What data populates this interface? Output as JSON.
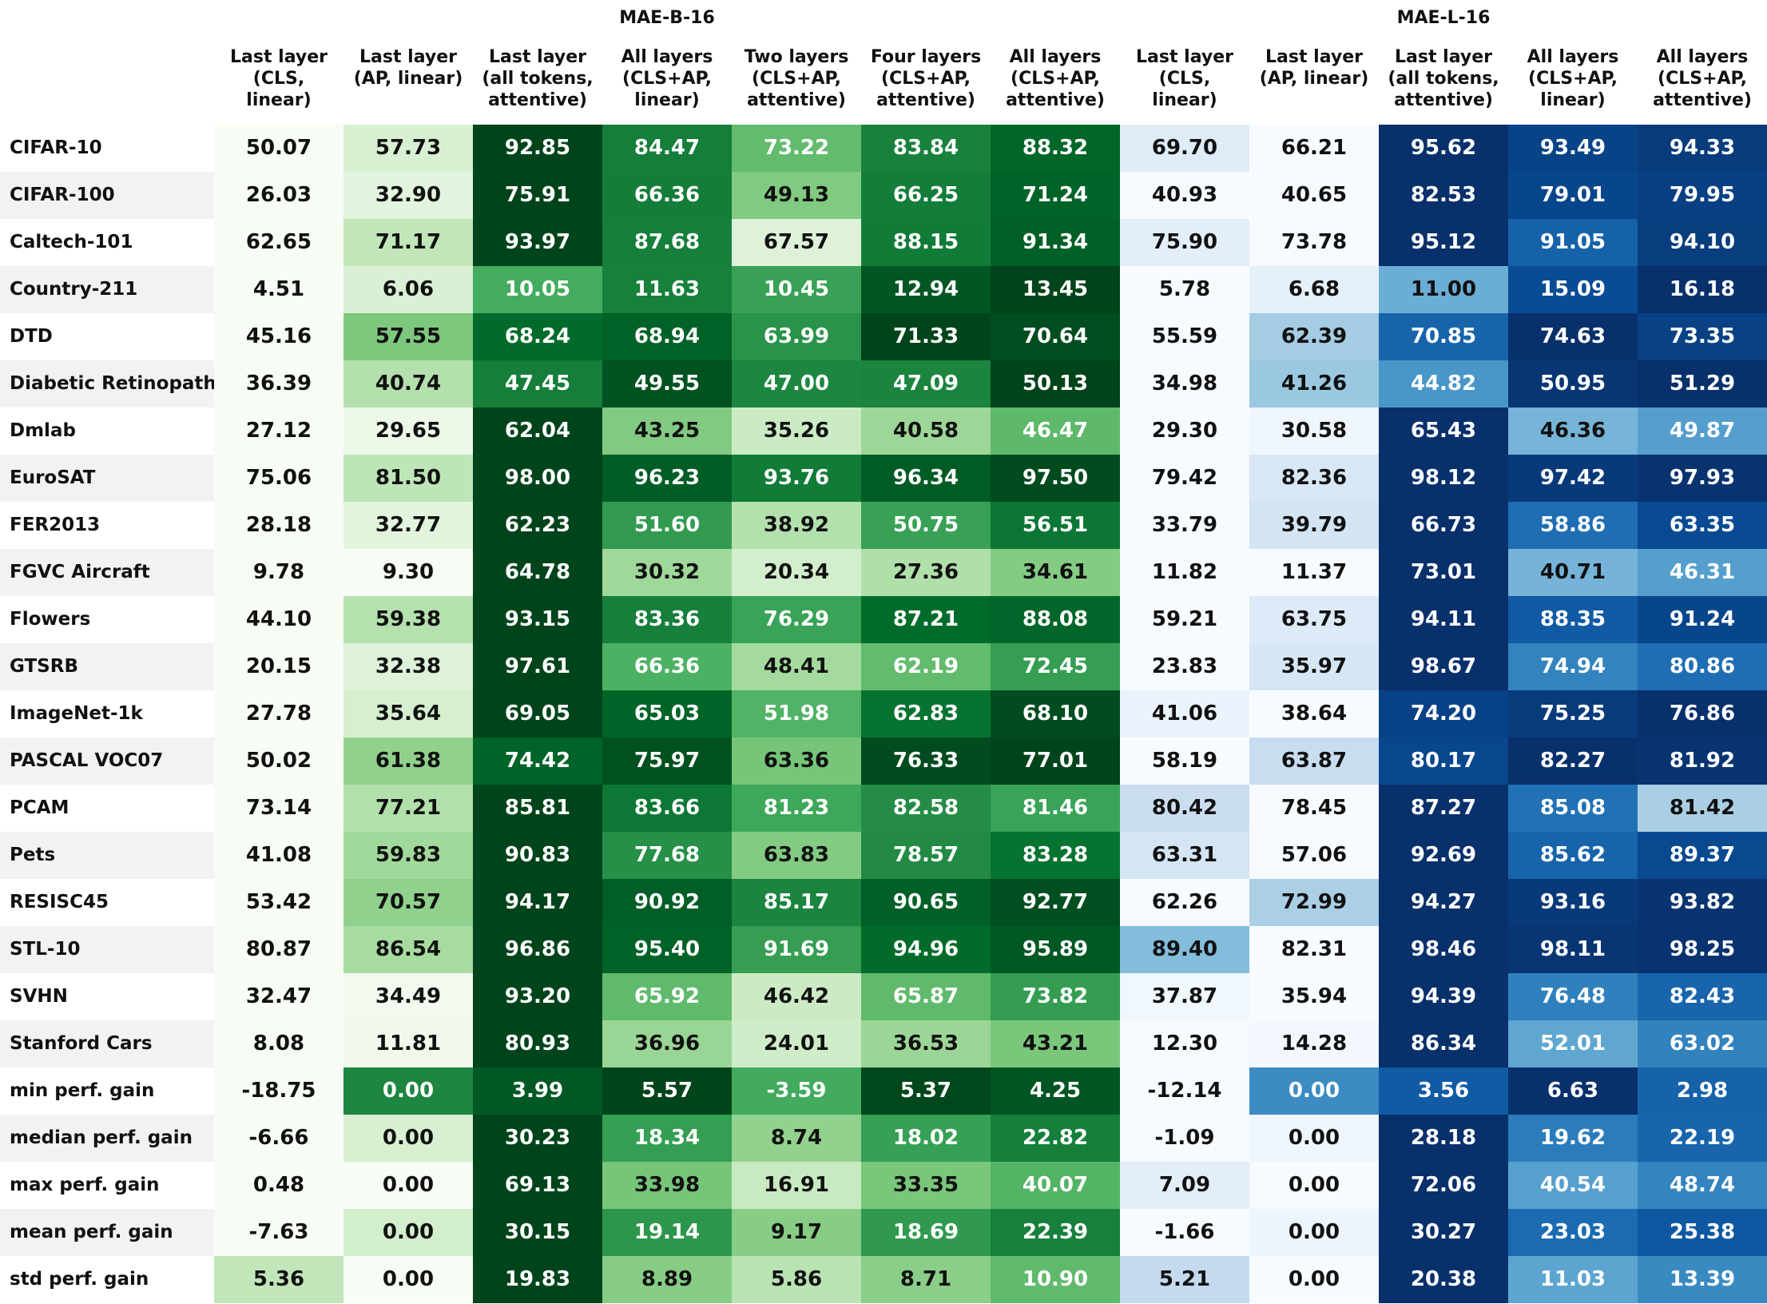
{
  "chart_data": {
    "type": "heatmap",
    "groups": [
      {
        "name": "MAE-B-16",
        "palette": "green",
        "columns": [
          0,
          1,
          2,
          3,
          4,
          5,
          6
        ]
      },
      {
        "name": "MAE-L-16",
        "palette": "blue",
        "columns": [
          7,
          8,
          9,
          10,
          11
        ]
      }
    ],
    "columns": [
      "Last layer\n(CLS,\nlinear)",
      "Last layer\n(AP, linear)",
      "Last layer\n(all tokens,\nattentive)",
      "All layers\n(CLS+AP,\nlinear)",
      "Two layers\n(CLS+AP,\nattentive)",
      "Four layers\n(CLS+AP,\nattentive)",
      "All layers\n(CLS+AP,\nattentive)",
      "Last layer\n(CLS,\nlinear)",
      "Last layer\n(AP, linear)",
      "Last layer\n(all tokens,\nattentive)",
      "All layers\n(CLS+AP,\nlinear)",
      "All layers\n(CLS+AP,\nattentive)"
    ],
    "rows": [
      {
        "label": "CIFAR-10",
        "values": [
          "50.07",
          "57.73",
          "92.85",
          "84.47",
          "73.22",
          "83.84",
          "88.32",
          "69.70",
          "66.21",
          "95.62",
          "93.49",
          "94.33"
        ]
      },
      {
        "label": "CIFAR-100",
        "values": [
          "26.03",
          "32.90",
          "75.91",
          "66.36",
          "49.13",
          "66.25",
          "71.24",
          "40.93",
          "40.65",
          "82.53",
          "79.01",
          "79.95"
        ]
      },
      {
        "label": "Caltech-101",
        "values": [
          "62.65",
          "71.17",
          "93.97",
          "87.68",
          "67.57",
          "88.15",
          "91.34",
          "75.90",
          "73.78",
          "95.12",
          "91.05",
          "94.10"
        ]
      },
      {
        "label": "Country-211",
        "values": [
          "4.51",
          "6.06",
          "10.05",
          "11.63",
          "10.45",
          "12.94",
          "13.45",
          "5.78",
          "6.68",
          "11.00",
          "15.09",
          "16.18"
        ]
      },
      {
        "label": "DTD",
        "values": [
          "45.16",
          "57.55",
          "68.24",
          "68.94",
          "63.99",
          "71.33",
          "70.64",
          "55.59",
          "62.39",
          "70.85",
          "74.63",
          "73.35"
        ]
      },
      {
        "label": "Diabetic Retinopathy",
        "values": [
          "36.39",
          "40.74",
          "47.45",
          "49.55",
          "47.00",
          "47.09",
          "50.13",
          "34.98",
          "41.26",
          "44.82",
          "50.95",
          "51.29"
        ]
      },
      {
        "label": "Dmlab",
        "values": [
          "27.12",
          "29.65",
          "62.04",
          "43.25",
          "35.26",
          "40.58",
          "46.47",
          "29.30",
          "30.58",
          "65.43",
          "46.36",
          "49.87"
        ]
      },
      {
        "label": "EuroSAT",
        "values": [
          "75.06",
          "81.50",
          "98.00",
          "96.23",
          "93.76",
          "96.34",
          "97.50",
          "79.42",
          "82.36",
          "98.12",
          "97.42",
          "97.93"
        ]
      },
      {
        "label": "FER2013",
        "values": [
          "28.18",
          "32.77",
          "62.23",
          "51.60",
          "38.92",
          "50.75",
          "56.51",
          "33.79",
          "39.79",
          "66.73",
          "58.86",
          "63.35"
        ]
      },
      {
        "label": "FGVC Aircraft",
        "values": [
          "9.78",
          "9.30",
          "64.78",
          "30.32",
          "20.34",
          "27.36",
          "34.61",
          "11.82",
          "11.37",
          "73.01",
          "40.71",
          "46.31"
        ]
      },
      {
        "label": "Flowers",
        "values": [
          "44.10",
          "59.38",
          "93.15",
          "83.36",
          "76.29",
          "87.21",
          "88.08",
          "59.21",
          "63.75",
          "94.11",
          "88.35",
          "91.24"
        ]
      },
      {
        "label": "GTSRB",
        "values": [
          "20.15",
          "32.38",
          "97.61",
          "66.36",
          "48.41",
          "62.19",
          "72.45",
          "23.83",
          "35.97",
          "98.67",
          "74.94",
          "80.86"
        ]
      },
      {
        "label": "ImageNet-1k",
        "values": [
          "27.78",
          "35.64",
          "69.05",
          "65.03",
          "51.98",
          "62.83",
          "68.10",
          "41.06",
          "38.64",
          "74.20",
          "75.25",
          "76.86"
        ]
      },
      {
        "label": "PASCAL VOC07",
        "values": [
          "50.02",
          "61.38",
          "74.42",
          "75.97",
          "63.36",
          "76.33",
          "77.01",
          "58.19",
          "63.87",
          "80.17",
          "82.27",
          "81.92"
        ]
      },
      {
        "label": "PCAM",
        "values": [
          "73.14",
          "77.21",
          "85.81",
          "83.66",
          "81.23",
          "82.58",
          "81.46",
          "80.42",
          "78.45",
          "87.27",
          "85.08",
          "81.42"
        ]
      },
      {
        "label": "Pets",
        "values": [
          "41.08",
          "59.83",
          "90.83",
          "77.68",
          "63.83",
          "78.57",
          "83.28",
          "63.31",
          "57.06",
          "92.69",
          "85.62",
          "89.37"
        ]
      },
      {
        "label": "RESISC45",
        "values": [
          "53.42",
          "70.57",
          "94.17",
          "90.92",
          "85.17",
          "90.65",
          "92.77",
          "62.26",
          "72.99",
          "94.27",
          "93.16",
          "93.82"
        ]
      },
      {
        "label": "STL-10",
        "values": [
          "80.87",
          "86.54",
          "96.86",
          "95.40",
          "91.69",
          "94.96",
          "95.89",
          "89.40",
          "82.31",
          "98.46",
          "98.11",
          "98.25"
        ]
      },
      {
        "label": "SVHN",
        "values": [
          "32.47",
          "34.49",
          "93.20",
          "65.92",
          "46.42",
          "65.87",
          "73.82",
          "37.87",
          "35.94",
          "94.39",
          "76.48",
          "82.43"
        ]
      },
      {
        "label": "Stanford Cars",
        "values": [
          "8.08",
          "11.81",
          "80.93",
          "36.96",
          "24.01",
          "36.53",
          "43.21",
          "12.30",
          "14.28",
          "86.34",
          "52.01",
          "63.02"
        ]
      },
      {
        "label": "min perf. gain",
        "values": [
          "-18.75",
          "0.00",
          "3.99",
          "5.57",
          "-3.59",
          "5.37",
          "4.25",
          "-12.14",
          "0.00",
          "3.56",
          "6.63",
          "2.98"
        ]
      },
      {
        "label": "median perf. gain",
        "values": [
          "-6.66",
          "0.00",
          "30.23",
          "18.34",
          "8.74",
          "18.02",
          "22.82",
          "-1.09",
          "0.00",
          "28.18",
          "19.62",
          "22.19"
        ]
      },
      {
        "label": "max perf. gain",
        "values": [
          "0.48",
          "0.00",
          "69.13",
          "33.98",
          "16.91",
          "33.35",
          "40.07",
          "7.09",
          "0.00",
          "72.06",
          "40.54",
          "48.74"
        ]
      },
      {
        "label": "mean perf. gain",
        "values": [
          "-7.63",
          "0.00",
          "30.15",
          "19.14",
          "9.17",
          "18.69",
          "22.39",
          "-1.66",
          "0.00",
          "30.27",
          "23.03",
          "25.38"
        ]
      },
      {
        "label": "std perf. gain",
        "values": [
          "5.36",
          "0.00",
          "19.83",
          "8.89",
          "5.86",
          "8.71",
          "10.90",
          "5.21",
          "0.00",
          "20.38",
          "11.03",
          "13.39"
        ]
      }
    ],
    "colormaps": {
      "green": [
        "#f7fcf5",
        "#e5f5e0",
        "#c7e9c0",
        "#a1d99b",
        "#74c476",
        "#41ab5d",
        "#238b45",
        "#006d2c",
        "#00441b"
      ],
      "blue": [
        "#f7fbff",
        "#deebf7",
        "#c6dbef",
        "#9ecae1",
        "#6baed6",
        "#4292c6",
        "#2171b5",
        "#08519c",
        "#08306b"
      ]
    },
    "color_scale": "row-wise within each model group"
  }
}
